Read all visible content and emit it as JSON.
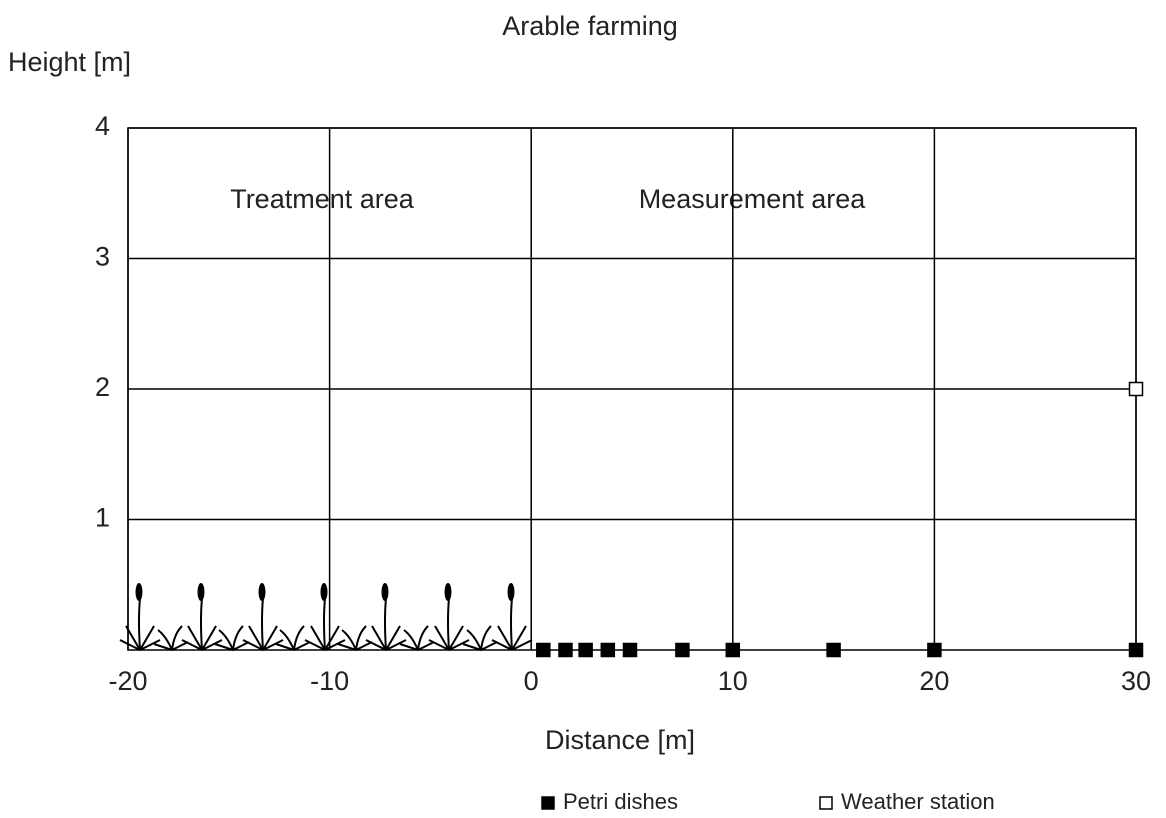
{
  "chart_data": {
    "type": "scatter",
    "title": "Arable farming",
    "x_label": "Distance [m]",
    "y_label": "Height [m]",
    "annotations": [
      "Treatment area",
      "Measurement area"
    ],
    "xlim": [
      -20,
      30
    ],
    "ylim": [
      0,
      4
    ],
    "xticks": [
      -20,
      -10,
      0,
      10,
      20,
      30
    ],
    "yticks": [
      1,
      2,
      3,
      4
    ],
    "grid": true,
    "series": [
      {
        "name": "Petri dishes",
        "color": "#000000",
        "x": [
          0.6,
          1.7,
          2.7,
          3.8,
          4.9,
          7.5,
          10,
          15,
          20,
          30
        ],
        "values": [
          0,
          0,
          0,
          0,
          0,
          0,
          0,
          0,
          0,
          0
        ]
      },
      {
        "name": "Weather station",
        "color": "#ffffff",
        "x": [
          30
        ],
        "values": [
          2
        ]
      }
    ]
  }
}
